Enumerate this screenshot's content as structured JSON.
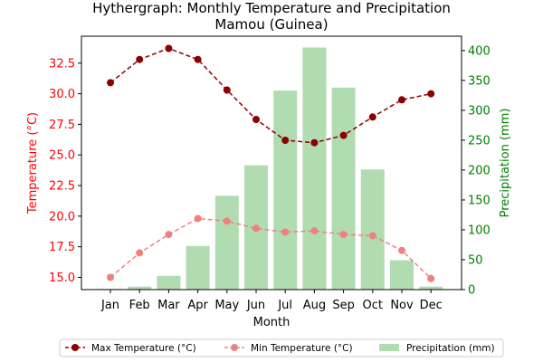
{
  "chart_data": {
    "type": "bar",
    "title": "Hythergraph: Monthly Temperature and Precipitation",
    "subtitle": "Mamou (Guinea)",
    "xlabel": "Month",
    "ylabel_left": "Temperature (°C)",
    "ylabel_right": "Precipitation (mm)",
    "categories": [
      "Jan",
      "Feb",
      "Mar",
      "Apr",
      "May",
      "Jun",
      "Jul",
      "Aug",
      "Sep",
      "Oct",
      "Nov",
      "Dec"
    ],
    "ylim_left": [
      14.0,
      34.7
    ],
    "ylim_right": [
      0,
      424
    ],
    "yticks_left": [
      "15.0",
      "17.5",
      "20.0",
      "22.5",
      "25.0",
      "27.5",
      "30.0",
      "32.5"
    ],
    "yticks_right": [
      "0",
      "50",
      "100",
      "150",
      "200",
      "250",
      "300",
      "350",
      "400"
    ],
    "series": [
      {
        "name": "Max Temperature (°C)",
        "type": "line",
        "axis": "left",
        "color": "#8b0000",
        "values": [
          30.9,
          32.8,
          33.7,
          32.8,
          30.3,
          27.9,
          26.2,
          26.0,
          26.6,
          28.1,
          29.5,
          30.0
        ]
      },
      {
        "name": "Min Temperature (°C)",
        "type": "line",
        "axis": "left",
        "color": "#f08080",
        "values": [
          15.0,
          17.0,
          18.5,
          19.8,
          19.6,
          19.0,
          18.7,
          18.8,
          18.5,
          18.4,
          17.2,
          14.9
        ]
      },
      {
        "name": "Precipitation (mm)",
        "type": "bar",
        "axis": "right",
        "color": "#a8d8a8",
        "values": [
          1,
          5,
          23,
          73,
          157,
          208,
          333,
          405,
          338,
          201,
          49,
          5
        ]
      }
    ],
    "legend": "bottom-center",
    "grid": false,
    "left_axis_color": "#ff0000",
    "right_axis_color": "#008000"
  }
}
